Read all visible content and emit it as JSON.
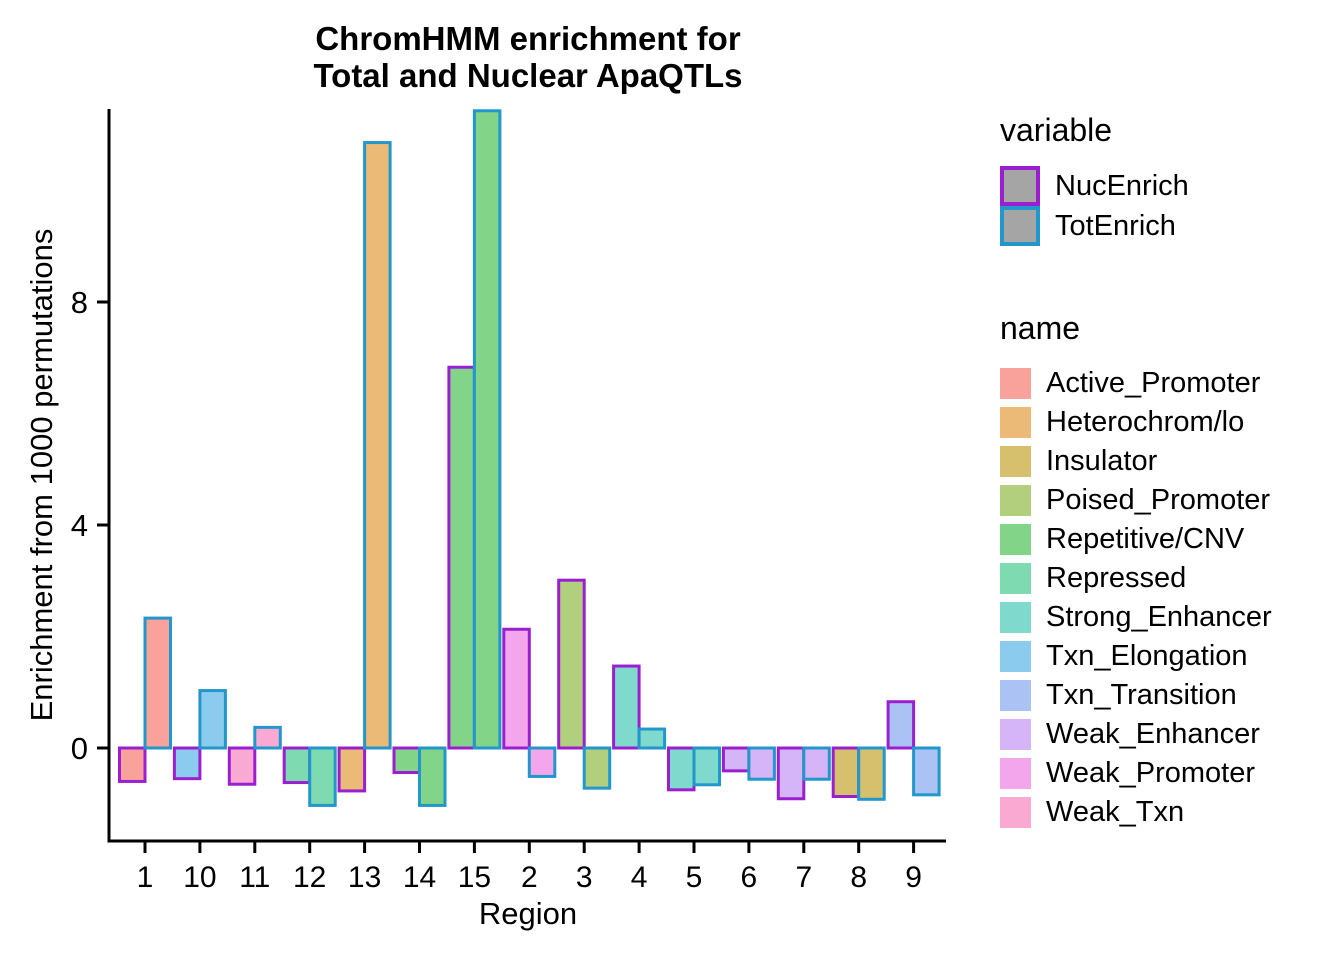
{
  "title": {
    "line1": "ChromHMM enrichment for",
    "line2": "Total and Nuclear ApaQTLs"
  },
  "axes": {
    "x_label": "Region",
    "y_label": "Enrichment from 1000 permutations"
  },
  "legend": {
    "variable": {
      "title": "variable",
      "key_fill": "#A5A5A5",
      "items": [
        {
          "label": "NucEnrich",
          "stroke": "#9B1FD1"
        },
        {
          "label": "TotEnrich",
          "stroke": "#2297CB"
        }
      ]
    },
    "name": {
      "title": "name",
      "items": [
        {
          "label": "Active_Promoter",
          "fill": "#F9A19B"
        },
        {
          "label": "Heterochrom/lo",
          "fill": "#EBBA77"
        },
        {
          "label": "Insulator",
          "fill": "#D6C06E"
        },
        {
          "label": "Poised_Promoter",
          "fill": "#B2CF7D"
        },
        {
          "label": "Repetitive/CNV",
          "fill": "#82D488"
        },
        {
          "label": "Repressed",
          "fill": "#7EDAB1"
        },
        {
          "label": "Strong_Enhancer",
          "fill": "#7FDACD"
        },
        {
          "label": "Txn_Elongation",
          "fill": "#8ACBEE"
        },
        {
          "label": "Txn_Transition",
          "fill": "#ABC3F4"
        },
        {
          "label": "Weak_Enhancer",
          "fill": "#D5B4F7"
        },
        {
          "label": "Weak_Promoter",
          "fill": "#F3A6EC"
        },
        {
          "label": "Weak_Txn",
          "fill": "#FAA9D2"
        }
      ]
    }
  },
  "chart_data": {
    "type": "bar",
    "grouping": "dodge",
    "title": "ChromHMM enrichment for Total and Nuclear ApaQTLs",
    "xlabel": "Region",
    "ylabel": "Enrichment from 1000 permutations",
    "ylim": [
      -1.65,
      11.6
    ],
    "yticks": [
      0,
      4,
      8
    ],
    "grid": false,
    "legend_position": "right",
    "categories": [
      "1",
      "10",
      "11",
      "12",
      "13",
      "14",
      "15",
      "2",
      "3",
      "4",
      "5",
      "6",
      "7",
      "8",
      "9"
    ],
    "region_state": {
      "1": "Active_Promoter",
      "10": "Txn_Elongation",
      "11": "Weak_Txn",
      "12": "Repressed",
      "13": "Heterochrom/lo",
      "14": "Repetitive/CNV",
      "15": "Repetitive/CNV",
      "2": "Weak_Promoter",
      "3": "Poised_Promoter",
      "4": "Strong_Enhancer",
      "5": "Strong_Enhancer",
      "6": "Weak_Enhancer",
      "7": "Weak_Enhancer",
      "8": "Insulator",
      "9": "Txn_Transition"
    },
    "state_colors": {
      "Active_Promoter": "#F9A19B",
      "Heterochrom/lo": "#EBBA77",
      "Insulator": "#D6C06E",
      "Poised_Promoter": "#B2CF7D",
      "Repetitive/CNV": "#82D488",
      "Repressed": "#7EDAB1",
      "Strong_Enhancer": "#7FDACD",
      "Txn_Elongation": "#8ACBEE",
      "Txn_Transition": "#ABC3F4",
      "Weak_Enhancer": "#D5B4F7",
      "Weak_Promoter": "#F3A6EC",
      "Weak_Txn": "#FAA9D2"
    },
    "series": [
      {
        "name": "NucEnrich",
        "stroke": "#9B1FD1",
        "values": [
          -0.6,
          -0.55,
          -0.65,
          -0.62,
          -0.77,
          -0.44,
          6.83,
          2.13,
          3.01,
          1.47,
          -0.75,
          -0.41,
          -0.91,
          -0.87,
          0.83
        ]
      },
      {
        "name": "TotEnrich",
        "stroke": "#2297CB",
        "values": [
          2.33,
          1.03,
          0.37,
          -1.03,
          10.86,
          -1.03,
          11.43,
          -0.51,
          -0.72,
          0.34,
          -0.66,
          -0.56,
          -0.56,
          -0.92,
          -0.84
        ]
      }
    ]
  }
}
